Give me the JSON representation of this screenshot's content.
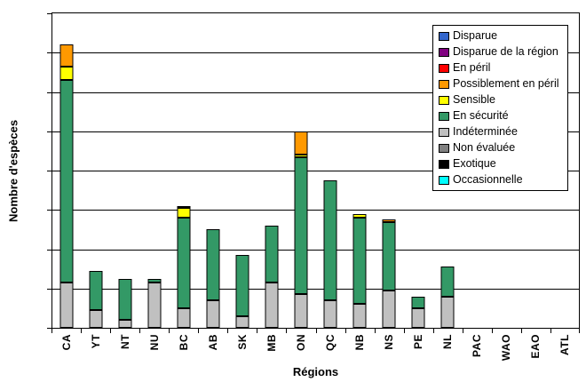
{
  "chart_data": {
    "type": "bar",
    "stacked": true,
    "title": "",
    "xlabel": "Régions",
    "ylabel": "Nombre d'espèces",
    "ylim": [
      0,
      160
    ],
    "yticks": [
      0,
      20,
      40,
      60,
      80,
      100,
      120,
      140,
      160
    ],
    "grid": true,
    "legend_position": "top-right-inside",
    "categories": [
      "CA",
      "YT",
      "NT",
      "NU",
      "BC",
      "AB",
      "SK",
      "MB",
      "ON",
      "QC",
      "NB",
      "NS",
      "PE",
      "NL",
      "PAC",
      "WAO",
      "EAO",
      "ATL"
    ],
    "series": [
      {
        "name": "Disparue",
        "color": "#3366CC",
        "values": [
          0,
          0,
          0,
          0,
          0,
          0,
          0,
          0,
          0,
          0,
          0,
          0,
          0,
          0,
          0,
          0,
          0,
          0
        ]
      },
      {
        "name": "Disparue de la région",
        "color": "#800080",
        "values": [
          0,
          0,
          0,
          0,
          0,
          0,
          0,
          0,
          0,
          0,
          0,
          0,
          0,
          0,
          0,
          0,
          0,
          0
        ]
      },
      {
        "name": "En péril",
        "color": "#FF0000",
        "values": [
          0,
          0,
          0,
          0,
          0,
          0,
          0,
          0,
          0,
          0,
          0,
          0,
          0,
          0,
          0,
          0,
          0,
          0
        ]
      },
      {
        "name": "Possiblement en péril",
        "color": "#FF9900",
        "values": [
          11,
          0,
          0,
          0,
          1,
          0,
          0,
          0,
          12,
          0,
          0,
          1,
          0,
          0,
          0,
          0,
          0,
          0
        ]
      },
      {
        "name": "Sensible",
        "color": "#FFFF00",
        "values": [
          7,
          0,
          0,
          0,
          5,
          0,
          0,
          0,
          1,
          0,
          2,
          0,
          0,
          0,
          0,
          0,
          0,
          0
        ]
      },
      {
        "name": "En sécurité",
        "color": "#339966",
        "values": [
          103,
          20,
          21,
          2,
          46,
          36,
          31,
          29,
          70,
          61,
          44,
          35,
          6,
          15,
          0,
          0,
          0,
          0
        ]
      },
      {
        "name": "Indéterminée",
        "color": "#C0C0C0",
        "values": [
          23,
          9,
          4,
          23,
          10,
          14,
          6,
          23,
          17,
          14,
          12,
          19,
          10,
          16,
          0,
          0,
          0,
          0
        ]
      },
      {
        "name": "Non évaluée",
        "color": "#808080",
        "values": [
          0,
          0,
          0,
          0,
          0,
          0,
          0,
          0,
          0,
          0,
          0,
          0,
          0,
          0,
          0,
          0,
          0,
          0
        ]
      },
      {
        "name": "Exotique",
        "color": "#000000",
        "values": [
          0,
          0,
          0,
          0,
          0,
          0,
          0,
          0,
          0,
          0,
          0,
          0,
          0,
          0,
          0,
          0,
          0,
          0
        ]
      },
      {
        "name": "Occasionnelle",
        "color": "#00FFFF",
        "values": [
          0,
          0,
          0,
          0,
          0,
          0,
          0,
          0,
          0,
          0,
          0,
          0,
          0,
          0,
          0,
          0,
          0,
          0
        ]
      }
    ],
    "totals": [
      144,
      29,
      25,
      25,
      62,
      50,
      37,
      52,
      100,
      75,
      58,
      55,
      16,
      31,
      0,
      0,
      0,
      0
    ],
    "stack_order": "bottom-to-top is reverse of series list (legend order)",
    "axis_color": "#000000",
    "gridline_color": "#000000"
  }
}
